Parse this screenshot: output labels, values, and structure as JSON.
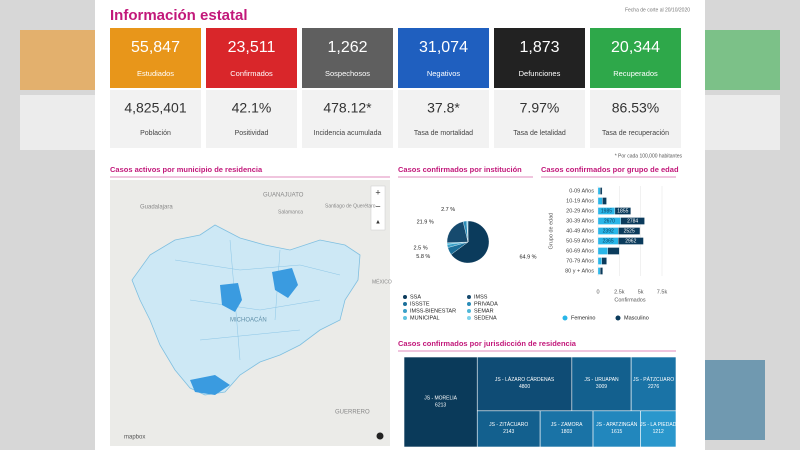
{
  "header": {
    "title": "Información estatal",
    "date": "Fecha de corte al 20/10/2020"
  },
  "cards": [
    {
      "value": "55,847",
      "label": "Estudiados",
      "color": "#e8961a"
    },
    {
      "value": "23,511",
      "label": "Confirmados",
      "color": "#d9262a"
    },
    {
      "value": "1,262",
      "label": "Sospechosos",
      "color": "#5f5f5f"
    },
    {
      "value": "31,074",
      "label": "Negativos",
      "color": "#1f5fbf"
    },
    {
      "value": "1,873",
      "label": "Defunciones",
      "color": "#222222"
    },
    {
      "value": "20,344",
      "label": "Recuperados",
      "color": "#2ea84a"
    }
  ],
  "stats": [
    {
      "value": "4,825,401",
      "label": "Población"
    },
    {
      "value": "42.1%",
      "label": "Positividad"
    },
    {
      "value": "478.12*",
      "label": "Incidencia acumulada"
    },
    {
      "value": "37.8*",
      "label": "Tasa de mortalidad"
    },
    {
      "value": "7.97%",
      "label": "Tasa de letalidad"
    },
    {
      "value": "86.53%",
      "label": "Tasa de recuperación"
    }
  ],
  "note": "* Por cada 100,000 habitantes",
  "map": {
    "title": "Casos activos por municipio de residencia",
    "places": [
      "GUANAJUATO",
      "Guadalajara",
      "Salamanca",
      "Santiago de Querétaro",
      "MICHOACÁN",
      "GUERRERO",
      "MÉXICO",
      "mapbox"
    ]
  },
  "chart_data": [
    {
      "type": "pie",
      "title": "Casos confirmados por institución",
      "categories": [
        "SSA",
        "ISSSTE",
        "IMSS-BIENESTAR",
        "MUNICIPAL",
        "IMSS",
        "PRIVADA",
        "SEMAR",
        "SEDENA"
      ],
      "values": [
        64.9,
        5.8,
        2.5,
        1.2,
        21.9,
        2.7,
        0.6,
        0.4
      ],
      "value_labels": [
        "64.9 %",
        "5.8 %",
        "2.5 %",
        null,
        "21.9 %",
        "2.7 %",
        null,
        null
      ],
      "colors": [
        "#0b3b5c",
        "#1b6f9a",
        "#3aa0c8",
        "#5fc3e0",
        "#164a6e",
        "#2a8cb8",
        "#4fb7d8",
        "#7fd3ea"
      ]
    },
    {
      "type": "bar",
      "orientation": "horizontal",
      "stacked": true,
      "title": "Casos confirmados por grupo de edad",
      "categories": [
        "0-09 Años",
        "10-19 Años",
        "20-29 Años",
        "30-39 Años",
        "40-49 Años",
        "50-59 Años",
        "60-69 Años",
        "70-79 Años",
        "80 y + Años"
      ],
      "series": [
        {
          "name": "Femenino",
          "color": "#29b6e8",
          "values": [
            250,
            520,
            1985,
            2670,
            2392,
            2365,
            1150,
            450,
            250
          ]
        },
        {
          "name": "Masculino",
          "color": "#0b3b5c",
          "values": [
            230,
            480,
            1855,
            2784,
            2525,
            2962,
            1345,
            560,
            300
          ]
        }
      ],
      "xlim": [
        0,
        7500
      ],
      "xticks": [
        0,
        {
          "value": 2500,
          "label": "2.5k"
        },
        {
          "value": 5000,
          "label": "5k"
        },
        {
          "value": 7500,
          "label": "7.5k"
        }
      ],
      "xlabel": "Confirmados",
      "ylabel": "Grupo de edad"
    },
    {
      "type": "treemap",
      "title": "Casos confirmados por jurisdicción de residencia",
      "categories": [
        "JS - MORELIA",
        "JS - LÁZARO CÁRDENAS",
        "JS - URUAPAN",
        "JS - PÁTZCUARO",
        "JS - ZITÁCUARO",
        "JS - ZAMORA",
        "JS - APATZINGÁN",
        "JS - LA PIEDAD"
      ],
      "values": [
        6213,
        4800,
        3009,
        2276,
        2143,
        1803,
        1615,
        1212
      ],
      "colors": [
        "#0a3a5a",
        "#0f4c75",
        "#13608e",
        "#1a73a6",
        "#13608e",
        "#1a73a6",
        "#2287bd",
        "#2a97cc"
      ]
    }
  ]
}
